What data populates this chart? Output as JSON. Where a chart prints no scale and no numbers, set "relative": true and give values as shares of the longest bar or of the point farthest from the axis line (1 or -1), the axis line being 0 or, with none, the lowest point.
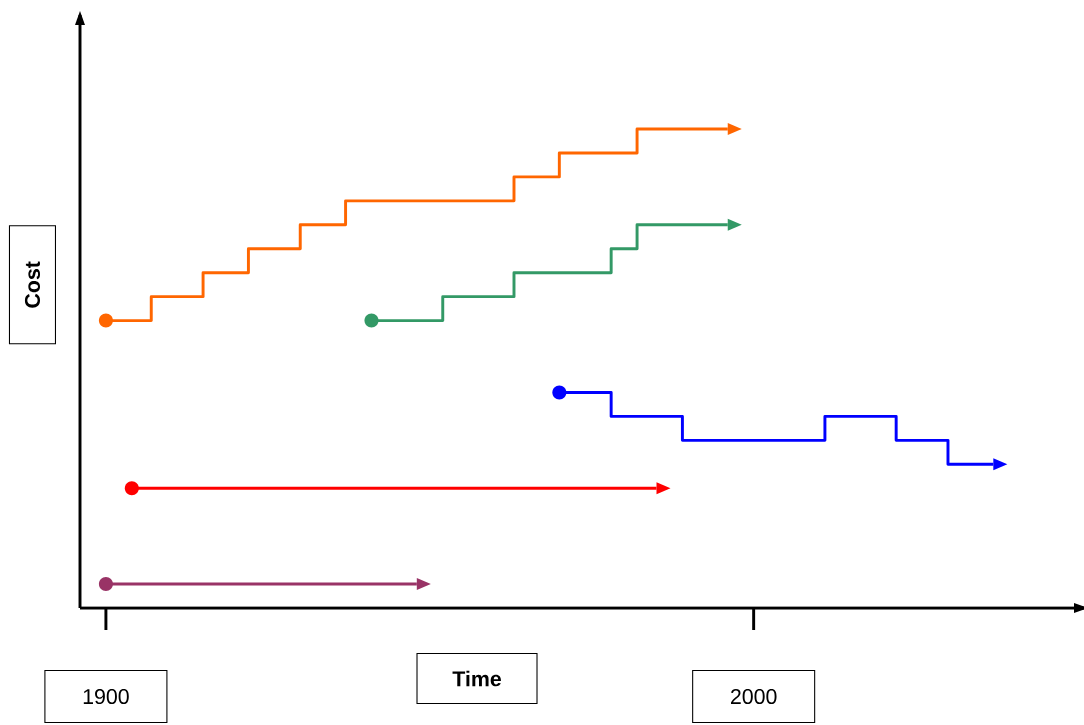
{
  "chart_data": {
    "type": "step",
    "xlabel": "Time",
    "ylabel": "Cost",
    "relative": true,
    "xlim": [
      1896,
      2051
    ],
    "xticks": [
      1900,
      2000
    ],
    "grid": false,
    "series": [
      {
        "color": "#ff6600",
        "x": [
          1900,
          1907,
          1915,
          1922,
          1930,
          1937,
          1963,
          1970,
          1982,
          1996
        ],
        "values": [
          0.6,
          0.65,
          0.7,
          0.75,
          0.8,
          0.85,
          0.9,
          0.95,
          1.0,
          1.0
        ]
      },
      {
        "color": "#339966",
        "x": [
          1941,
          1952,
          1963,
          1978,
          1982,
          1996
        ],
        "values": [
          0.6,
          0.65,
          0.7,
          0.75,
          0.8,
          0.8
        ]
      },
      {
        "color": "#0000ff",
        "x": [
          1970,
          1978,
          1989,
          2011,
          2022,
          2030,
          2037
        ],
        "values": [
          0.45,
          0.4,
          0.35,
          0.4,
          0.35,
          0.3,
          0.3
        ]
      },
      {
        "color": "#ff0000",
        "x": [
          1904,
          1985
        ],
        "values": [
          0.25,
          0.25
        ]
      },
      {
        "color": "#993366",
        "x": [
          1900,
          1948
        ],
        "values": [
          0.05,
          0.05
        ]
      }
    ]
  }
}
